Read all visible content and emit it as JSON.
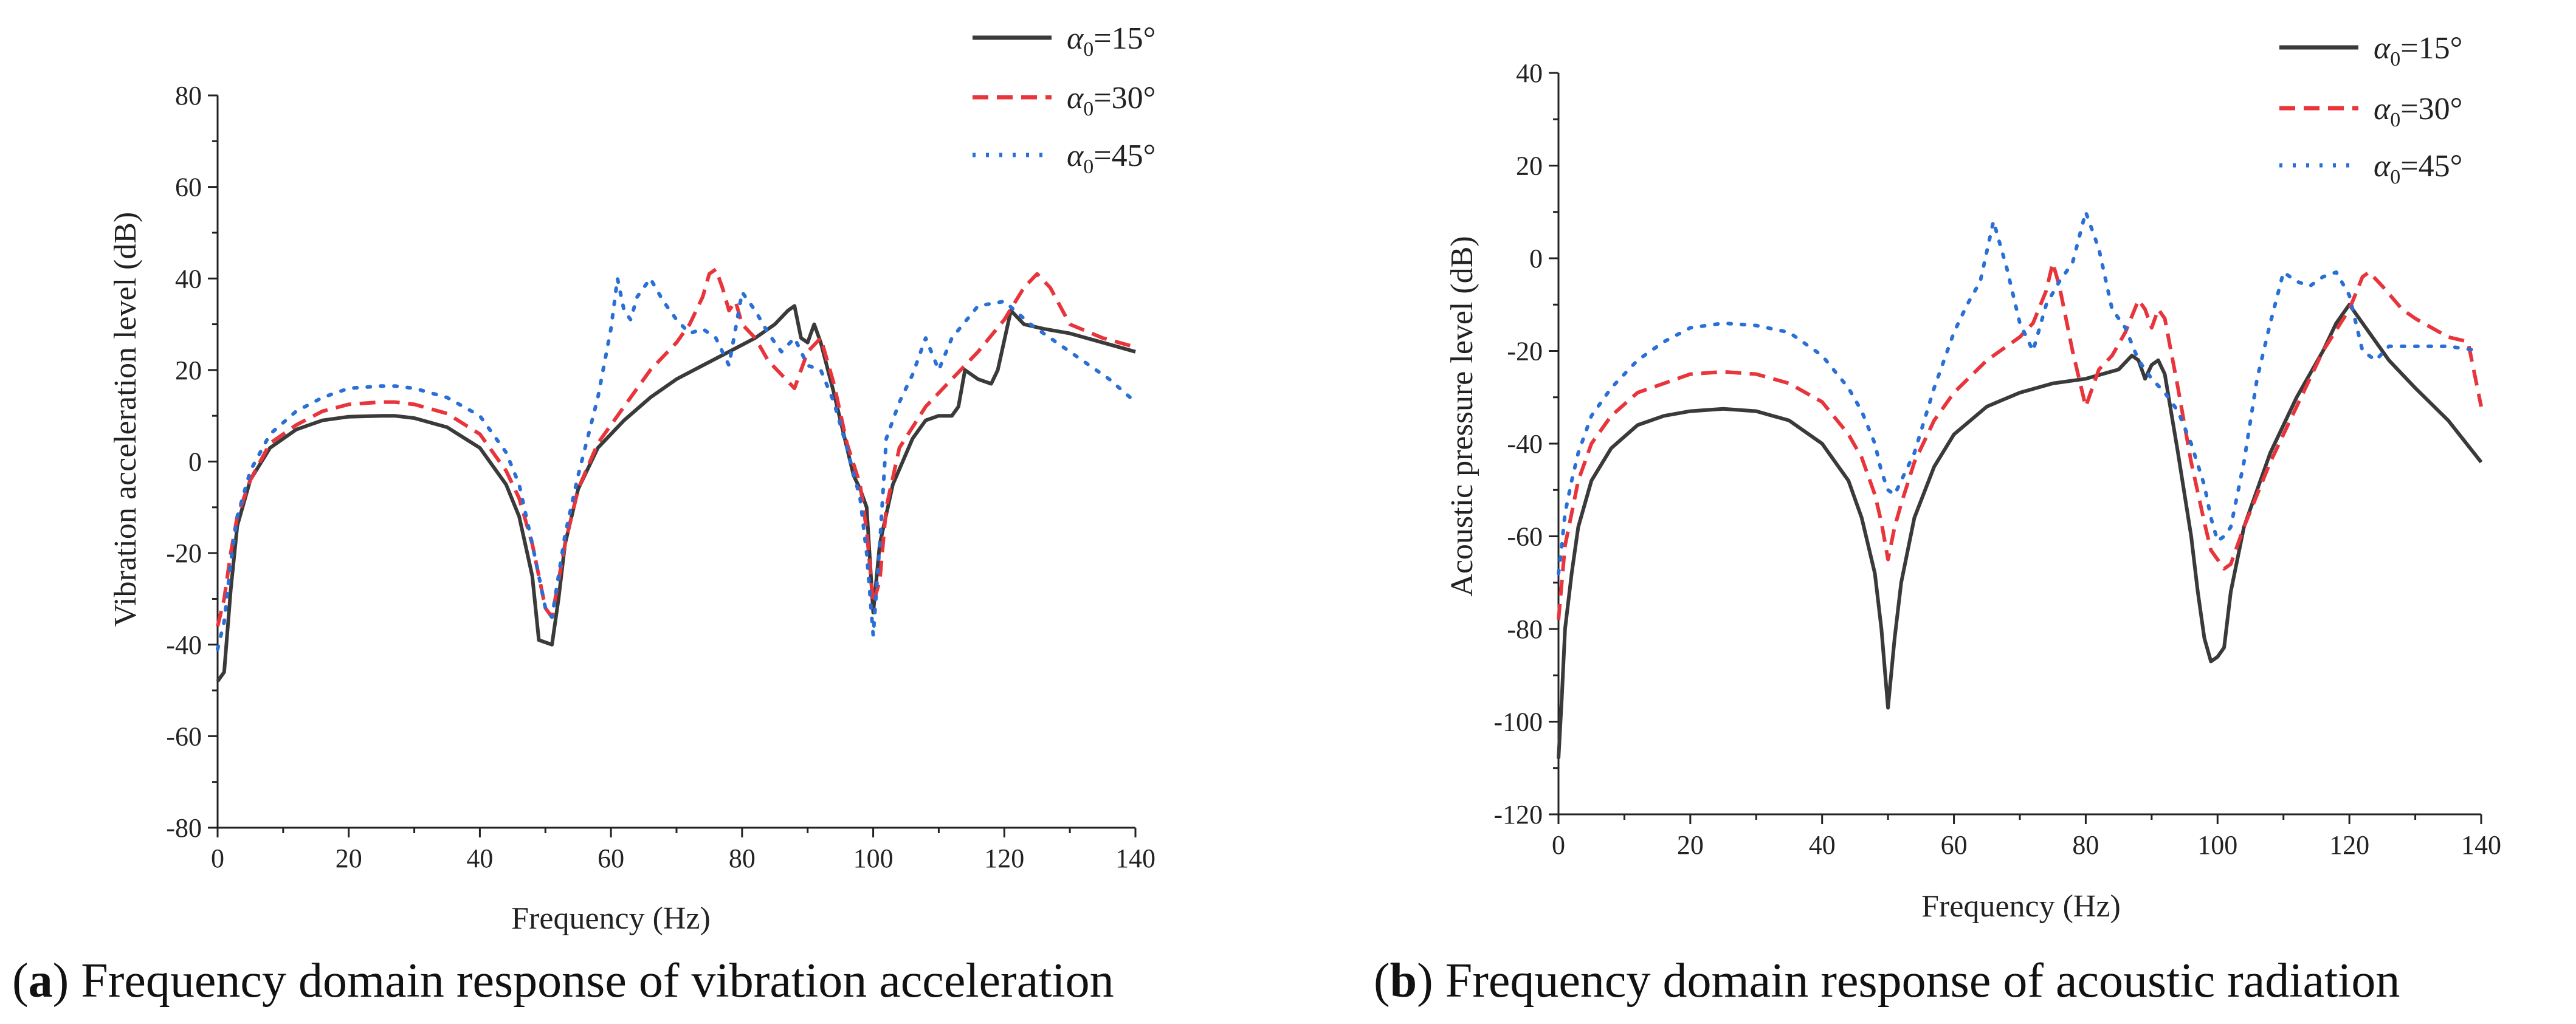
{
  "chart_data": [
    {
      "type": "line",
      "panel": "a",
      "caption": {
        "letter": "a",
        "text": ") Frequency domain response of vibration acceleration"
      },
      "xlabel": "Frequency (Hz)",
      "ylabel": "Vibration acceleration level (dB)",
      "xlim": [
        0,
        140
      ],
      "ylim": [
        -80,
        80
      ],
      "xticks": [
        0,
        20,
        40,
        60,
        80,
        100,
        120,
        140
      ],
      "yticks": [
        -80,
        -60,
        -40,
        -20,
        0,
        20,
        40,
        60,
        80
      ],
      "legend_position": "top-right",
      "series": [
        {
          "name": "α0=15°",
          "color": "#3a3a3a",
          "dash": "solid",
          "x": [
            0,
            1,
            2,
            3,
            5,
            8,
            12,
            16,
            20,
            25,
            27,
            30,
            35,
            40,
            44,
            46,
            48,
            49,
            51,
            52,
            53,
            55,
            58,
            62,
            66,
            70,
            74,
            78,
            82,
            85,
            87,
            88,
            89,
            90,
            91,
            92,
            94,
            96,
            97,
            98,
            99,
            100,
            101,
            103,
            106,
            108,
            110,
            112,
            113,
            114,
            116,
            118,
            119,
            121,
            123,
            126,
            130,
            135,
            140
          ],
          "y": [
            -48,
            -46,
            -28,
            -14,
            -4,
            3,
            7,
            9,
            9.8,
            10,
            10,
            9.5,
            7.5,
            3,
            -5,
            -12,
            -25,
            -39,
            -40,
            -30,
            -18,
            -6,
            3,
            9,
            14,
            18,
            21,
            24,
            27,
            30,
            33,
            34,
            27,
            26,
            30,
            26,
            15,
            3,
            -3,
            -6,
            -10,
            -33,
            -18,
            -5,
            5,
            9,
            10,
            10,
            12,
            20,
            18,
            17,
            20,
            33,
            30,
            29,
            28,
            26,
            24
          ]
        },
        {
          "name": "α0=30°",
          "color": "#e8343b",
          "dash": "26,14",
          "x": [
            0,
            1,
            2,
            3,
            5,
            8,
            12,
            16,
            20,
            25,
            27,
            30,
            35,
            40,
            44,
            46,
            48,
            49,
            50,
            51,
            53,
            55,
            58,
            62,
            66,
            70,
            72,
            74,
            75,
            76,
            77,
            78,
            79,
            80,
            82,
            84,
            86,
            88,
            90,
            92,
            94,
            96,
            98,
            99,
            100,
            101,
            102,
            104,
            108,
            112,
            116,
            120,
            123,
            125,
            127,
            130,
            135,
            140
          ],
          "y": [
            -36,
            -30,
            -20,
            -12,
            -4,
            4,
            8,
            11,
            12.5,
            13,
            13,
            12.5,
            10.5,
            6,
            -2,
            -8,
            -18,
            -25,
            -32,
            -34,
            -18,
            -6,
            4,
            12,
            20,
            26,
            30,
            36,
            41,
            42,
            38,
            33,
            35,
            30,
            27,
            22,
            19,
            16,
            24,
            27,
            17,
            4,
            -5,
            -15,
            -31,
            -26,
            -10,
            3,
            12,
            18,
            24,
            31,
            38,
            41,
            38,
            30,
            27,
            25
          ]
        },
        {
          "name": "α0=45°",
          "color": "#2a6fd6",
          "dash": "5,17",
          "x": [
            0,
            1,
            2,
            3,
            5,
            8,
            12,
            16,
            20,
            25,
            27,
            30,
            35,
            40,
            44,
            46,
            48,
            49,
            50,
            51,
            53,
            55,
            58,
            60,
            61,
            62,
            63,
            64,
            66,
            68,
            70,
            72,
            74,
            76,
            78,
            80,
            82,
            84,
            86,
            88,
            90,
            92,
            94,
            96,
            98,
            99,
            100,
            101,
            102,
            104,
            106,
            108,
            110,
            112,
            116,
            120,
            124,
            128,
            132,
            136,
            140
          ],
          "y": [
            -41,
            -35,
            -22,
            -12,
            -2,
            6,
            11,
            14,
            16,
            16.5,
            16.5,
            16,
            14,
            10,
            2,
            -5,
            -18,
            -25,
            -32,
            -34,
            -16,
            -3,
            14,
            29,
            40,
            33,
            31,
            36,
            40,
            35,
            31,
            28,
            29,
            27,
            21,
            37,
            33,
            28,
            24,
            27,
            21,
            20,
            13,
            3,
            -8,
            -20,
            -38,
            -18,
            5,
            13,
            19,
            27,
            20,
            27,
            34,
            35,
            30,
            26,
            22,
            18,
            13
          ]
        }
      ]
    },
    {
      "type": "line",
      "panel": "b",
      "caption": {
        "letter": "b",
        "text": ") Frequency domain response of acoustic radiation"
      },
      "xlabel": "Frequency (Hz)",
      "ylabel": "Acoustic pressure level (dB)",
      "xlim": [
        0,
        140
      ],
      "ylim": [
        -120,
        40
      ],
      "xticks": [
        0,
        20,
        40,
        60,
        80,
        100,
        120,
        140
      ],
      "yticks": [
        -120,
        -100,
        -80,
        -60,
        -40,
        -20,
        0,
        20,
        40
      ],
      "legend_position": "top-right",
      "series": [
        {
          "name": "α0=15°",
          "color": "#3a3a3a",
          "dash": "solid",
          "x": [
            0,
            0.5,
            1,
            2,
            3,
            5,
            8,
            12,
            16,
            20,
            25,
            30,
            35,
            40,
            44,
            46,
            48,
            49,
            50,
            51,
            52,
            54,
            57,
            60,
            65,
            70,
            75,
            80,
            85,
            87,
            88,
            89,
            90,
            91,
            92,
            94,
            96,
            97,
            98,
            99,
            100,
            101,
            102,
            104,
            108,
            112,
            116,
            118,
            120,
            122,
            126,
            130,
            135,
            140
          ],
          "y": [
            -108,
            -95,
            -80,
            -68,
            -58,
            -48,
            -41,
            -36,
            -34,
            -33,
            -32.5,
            -33,
            -35,
            -40,
            -48,
            -56,
            -68,
            -80,
            -97,
            -82,
            -70,
            -56,
            -45,
            -38,
            -32,
            -29,
            -27,
            -26,
            -24,
            -21,
            -22,
            -26,
            -23,
            -22,
            -25,
            -42,
            -60,
            -72,
            -82,
            -87,
            -86,
            -84,
            -72,
            -58,
            -42,
            -30,
            -20,
            -14,
            -10,
            -14,
            -22,
            -28,
            -35,
            -44
          ]
        },
        {
          "name": "α0=30°",
          "color": "#e8343b",
          "dash": "26,14",
          "x": [
            0,
            0.5,
            1,
            2,
            3,
            5,
            8,
            12,
            16,
            20,
            25,
            30,
            35,
            40,
            44,
            46,
            48,
            49,
            50,
            51,
            52,
            54,
            57,
            60,
            65,
            70,
            72,
            74,
            75,
            76,
            78,
            80,
            82,
            84,
            86,
            88,
            89,
            90,
            91,
            92,
            94,
            96,
            98,
            99,
            100,
            101,
            102,
            104,
            108,
            112,
            116,
            120,
            122,
            123,
            125,
            128,
            130,
            135,
            138,
            140
          ],
          "y": [
            -78,
            -70,
            -62,
            -55,
            -48,
            -40,
            -34,
            -29,
            -27,
            -25,
            -24.5,
            -25,
            -27,
            -31,
            -38,
            -43,
            -51,
            -57,
            -65,
            -58,
            -53,
            -44,
            -35,
            -29,
            -22,
            -17,
            -14,
            -7,
            -1,
            -6,
            -20,
            -32,
            -24,
            -21,
            -16,
            -9,
            -11,
            -15,
            -11,
            -13,
            -28,
            -44,
            -57,
            -63,
            -65,
            -67,
            -66,
            -58,
            -44,
            -32,
            -20,
            -11,
            -4,
            -3,
            -6,
            -11,
            -13,
            -17,
            -18,
            -32
          ]
        },
        {
          "name": "α0=45°",
          "color": "#2a6fd6",
          "dash": "5,17",
          "x": [
            0,
            0.5,
            1,
            2,
            3,
            5,
            8,
            12,
            16,
            20,
            25,
            30,
            35,
            40,
            44,
            46,
            48,
            49,
            50,
            51,
            52,
            54,
            57,
            60,
            62,
            64,
            66,
            68,
            70,
            72,
            74,
            76,
            78,
            80,
            82,
            84,
            86,
            88,
            90,
            92,
            94,
            96,
            98,
            99,
            100,
            101,
            102,
            104,
            106,
            108,
            110,
            112,
            114,
            116,
            118,
            120,
            122,
            124,
            126,
            130,
            135,
            140
          ],
          "y": [
            -68,
            -62,
            -55,
            -48,
            -42,
            -34,
            -28,
            -22,
            -18,
            -15,
            -14,
            -14.5,
            -16,
            -21,
            -28,
            -33,
            -40,
            -46,
            -50,
            -51,
            -48,
            -42,
            -28,
            -16,
            -10,
            -5,
            8,
            -2,
            -14,
            -20,
            -10,
            -5,
            -1,
            10,
            2,
            -11,
            -15,
            -22,
            -26,
            -29,
            -33,
            -40,
            -49,
            -56,
            -61,
            -60,
            -58,
            -44,
            -26,
            -14,
            -3,
            -5,
            -6,
            -4,
            -3,
            -8,
            -20,
            -22,
            -19,
            -19,
            -19,
            -20
          ]
        }
      ]
    }
  ]
}
